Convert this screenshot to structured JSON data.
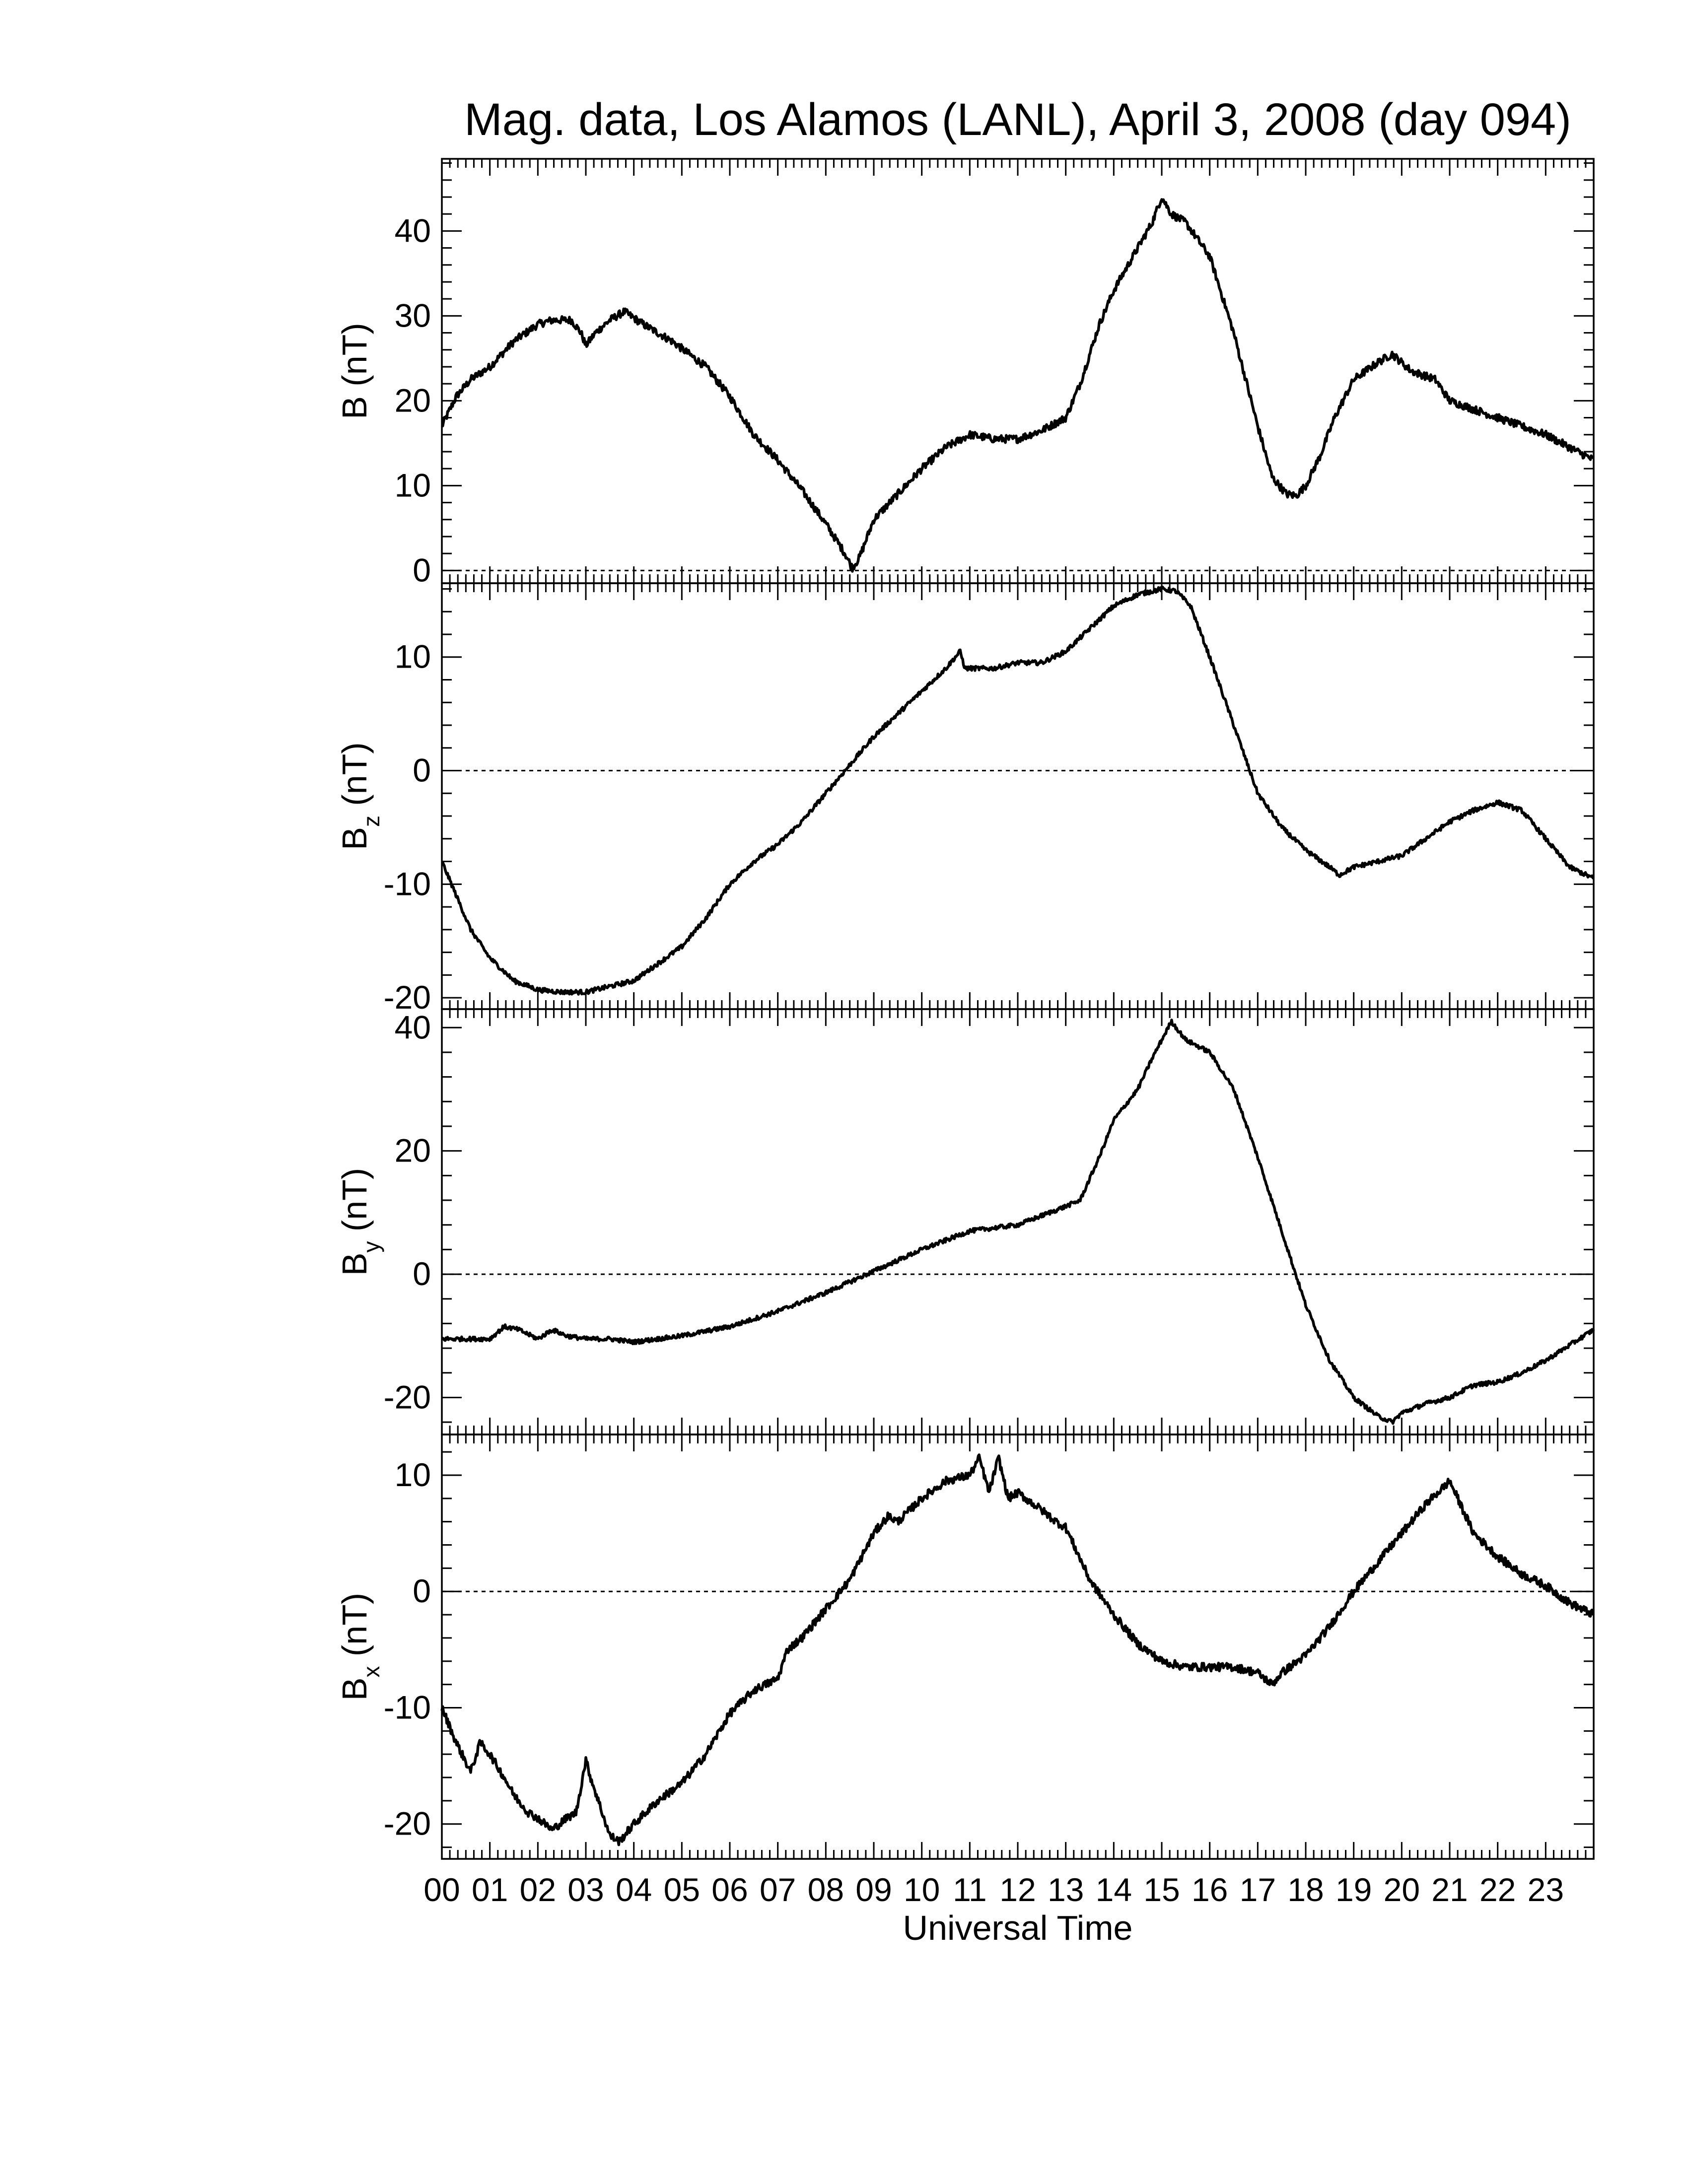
{
  "chart_data": {
    "type": "line",
    "title": "Mag. data, Los Alamos (LANL), April 3, 2008 (day 094)",
    "xlabel": "Universal Time",
    "xlim": [
      0,
      24
    ],
    "x_tick_labels": [
      "00",
      "01",
      "02",
      "03",
      "04",
      "05",
      "06",
      "07",
      "08",
      "09",
      "10",
      "11",
      "12",
      "13",
      "14",
      "15",
      "16",
      "17",
      "18",
      "19",
      "20",
      "21",
      "22",
      "23"
    ],
    "line_color": "#000000",
    "panels": [
      {
        "id": "B",
        "ylabel_main": "B",
        "ylabel_sub": "",
        "ylabel_unit": "(nT)",
        "ylim": [
          -1.5,
          48.5
        ],
        "yticks": [
          0,
          10,
          20,
          30,
          40
        ],
        "zero_line": true,
        "noise": 0.45,
        "x": [
          0,
          0.3,
          0.6,
          1.0,
          1.5,
          2.0,
          2.3,
          2.7,
          2.9,
          3.0,
          3.2,
          3.5,
          3.8,
          4.2,
          4.8,
          5.5,
          6.0,
          6.5,
          7.0,
          7.5,
          8.0,
          8.4,
          8.55,
          8.7,
          9.0,
          9.5,
          10.0,
          10.5,
          11.0,
          11.5,
          12.0,
          12.5,
          13.0,
          13.3,
          13.7,
          14.0,
          14.5,
          14.8,
          15.0,
          15.2,
          15.5,
          16.0,
          16.5,
          17.0,
          17.3,
          17.6,
          17.8,
          18.0,
          18.3,
          18.6,
          19.0,
          19.5,
          19.8,
          20.2,
          20.7,
          21.0,
          21.5,
          22.0,
          22.5,
          23.0,
          23.5,
          24.0
        ],
        "y": [
          17,
          20.5,
          22.5,
          24,
          27,
          29,
          29.5,
          29.5,
          28,
          26.5,
          28,
          29.5,
          30.5,
          29,
          27,
          24,
          20.5,
          16,
          13,
          9.5,
          5.5,
          2,
          0.3,
          1.5,
          6,
          9,
          12,
          14.5,
          16,
          15.5,
          15.5,
          16.5,
          18,
          22,
          29,
          33,
          38,
          41,
          44,
          42,
          41,
          37,
          28,
          17,
          11,
          9,
          8.8,
          10,
          13.5,
          18,
          22.5,
          24.5,
          25.5,
          23.5,
          22.5,
          20,
          19,
          18,
          17,
          16,
          14.5,
          13
        ]
      },
      {
        "id": "Bz",
        "ylabel_main": "B",
        "ylabel_sub": "z",
        "ylabel_unit": "(nT)",
        "ylim": [
          -21,
          16.5
        ],
        "yticks": [
          -20,
          -10,
          0,
          10
        ],
        "zero_line": true,
        "noise": 0.2,
        "x": [
          0,
          0.3,
          0.6,
          1.0,
          1.5,
          2.0,
          2.5,
          3.0,
          3.5,
          4.0,
          4.5,
          5.0,
          5.5,
          6.0,
          6.5,
          7.0,
          7.5,
          8.0,
          8.5,
          9.0,
          9.5,
          10.0,
          10.5,
          10.8,
          10.9,
          11.5,
          12.0,
          12.5,
          13.0,
          13.5,
          14.0,
          14.5,
          15.0,
          15.3,
          15.6,
          16.0,
          16.5,
          17.0,
          17.5,
          18.0,
          18.5,
          18.7,
          19.0,
          19.5,
          20.0,
          20.5,
          21.0,
          21.5,
          22.0,
          22.5,
          23.0,
          23.5,
          24.0
        ],
        "y": [
          -8,
          -11,
          -14,
          -16.5,
          -18.5,
          -19.3,
          -19.5,
          -19.5,
          -19,
          -18.5,
          -17,
          -15.5,
          -13,
          -10,
          -8,
          -6.5,
          -4.5,
          -2,
          0.5,
          3,
          5,
          7,
          9,
          10.5,
          9,
          9,
          9.5,
          9.5,
          10.5,
          12.5,
          14.5,
          15.5,
          16,
          15.8,
          14.5,
          10,
          4,
          -2,
          -5,
          -7,
          -8.5,
          -9.2,
          -8.5,
          -8,
          -7.5,
          -6,
          -4.5,
          -3.5,
          -2.8,
          -3.5,
          -6,
          -8.5,
          -9.5
        ]
      },
      {
        "id": "By",
        "ylabel_main": "B",
        "ylabel_sub": "y",
        "ylabel_unit": "(nT)",
        "ylim": [
          -26,
          43
        ],
        "yticks": [
          -20,
          0,
          20,
          40
        ],
        "zero_line": true,
        "noise": 0.35,
        "x": [
          0,
          0.5,
          1.0,
          1.3,
          1.6,
          2.0,
          2.3,
          2.6,
          3.0,
          3.5,
          4.0,
          4.5,
          5.0,
          6.0,
          7.0,
          8.0,
          9.0,
          10.0,
          10.5,
          11.0,
          11.5,
          12.0,
          12.5,
          13.0,
          13.3,
          13.7,
          14.0,
          14.5,
          14.8,
          15.0,
          15.2,
          15.5,
          16.0,
          16.5,
          17.0,
          17.5,
          18.0,
          18.5,
          19.0,
          19.5,
          19.8,
          20.0,
          20.5,
          21.0,
          21.5,
          22.0,
          22.5,
          23.0,
          23.5,
          24.0
        ],
        "y": [
          -10.5,
          -10.5,
          -10.5,
          -8.5,
          -9,
          -10.5,
          -9,
          -10,
          -10.5,
          -10.5,
          -11,
          -10.5,
          -10,
          -8.5,
          -6,
          -3,
          0.5,
          4,
          5.5,
          7,
          7.5,
          8,
          9.5,
          11,
          12,
          19,
          25,
          30,
          35,
          38,
          41,
          38,
          36,
          30,
          19,
          7,
          -5,
          -14,
          -20,
          -23,
          -24,
          -22.5,
          -21,
          -20,
          -18,
          -17.5,
          -16,
          -14,
          -11.5,
          -9
        ]
      },
      {
        "id": "Bx",
        "ylabel_main": "B",
        "ylabel_sub": "x",
        "ylabel_unit": "(nT)",
        "ylim": [
          -23,
          13.5
        ],
        "yticks": [
          -20,
          -10,
          0,
          10
        ],
        "zero_line": true,
        "noise": 0.35,
        "x": [
          0,
          0.3,
          0.6,
          0.8,
          1.0,
          1.3,
          1.5,
          1.8,
          2.0,
          2.3,
          2.6,
          2.8,
          3.0,
          3.1,
          3.3,
          3.5,
          3.7,
          4.0,
          4.5,
          5.0,
          5.5,
          6.0,
          6.5,
          7.0,
          7.2,
          7.5,
          8.0,
          8.5,
          9.0,
          9.3,
          9.5,
          10.0,
          10.5,
          11.0,
          11.2,
          11.4,
          11.6,
          11.8,
          12.0,
          12.5,
          12.8,
          13.0,
          13.5,
          14.0,
          14.5,
          15.0,
          15.5,
          16.0,
          16.5,
          17.0,
          17.3,
          17.5,
          18.0,
          18.5,
          19.0,
          19.5,
          20.0,
          20.5,
          21.0,
          21.5,
          22.0,
          22.5,
          23.0,
          23.5,
          24.0
        ],
        "y": [
          -10,
          -13,
          -15.5,
          -13,
          -14,
          -16,
          -17.5,
          -19,
          -19.5,
          -20.5,
          -19.5,
          -19,
          -14.5,
          -16,
          -18.5,
          -21,
          -21.5,
          -20,
          -18,
          -16.5,
          -14,
          -10.5,
          -8.5,
          -7.5,
          -5,
          -4,
          -1.5,
          1,
          5,
          6.5,
          6,
          8,
          9.5,
          10,
          11.5,
          8.5,
          11.5,
          8,
          8.5,
          7,
          6,
          5.5,
          1,
          -2,
          -4.5,
          -6,
          -6.5,
          -6.5,
          -6.5,
          -7,
          -8,
          -7,
          -5.5,
          -3,
          0,
          2.5,
          5,
          7.5,
          9.5,
          5,
          3,
          1.5,
          0.5,
          -1,
          -2
        ]
      }
    ]
  }
}
